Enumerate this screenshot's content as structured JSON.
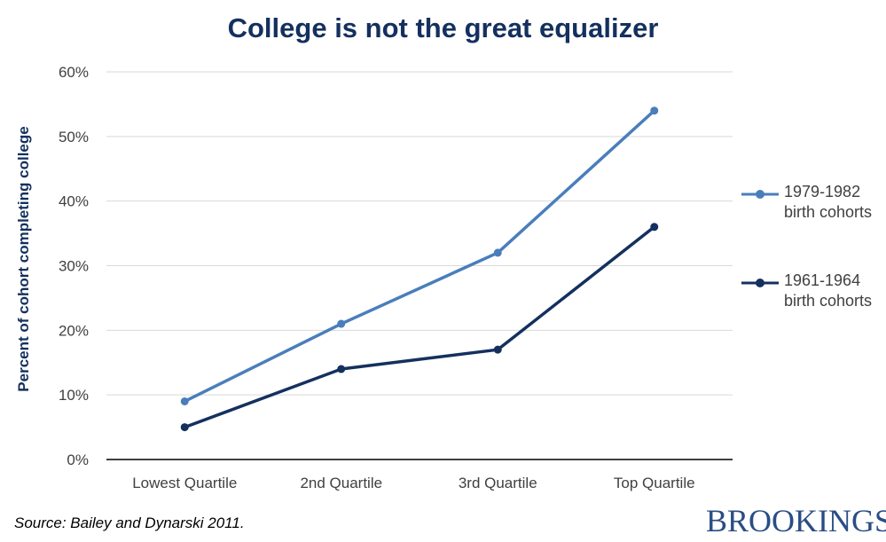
{
  "title": "College is not the great equalizer",
  "source": "Source: Bailey and Dynarski 2011.",
  "logo_text": "BROOKINGS",
  "colors": {
    "title": "#14305e",
    "series_light": "#4a7ebb",
    "series_dark": "#14305e",
    "grid": "#d9d9d9",
    "axis_text": "#404040"
  },
  "chart_data": {
    "type": "line",
    "title": "College is not the great equalizer",
    "xlabel": "",
    "ylabel": "Percent of cohort completing college",
    "categories": [
      "Lowest Quartile",
      "2nd Quartile",
      "3rd Quartile",
      "Top Quartile"
    ],
    "ylim": [
      0,
      60
    ],
    "yticks": [
      "0%",
      "10%",
      "20%",
      "30%",
      "40%",
      "50%",
      "60%"
    ],
    "grid": true,
    "legend_position": "right",
    "series": [
      {
        "name": "1979-1982 birth cohorts",
        "values": [
          9,
          21,
          32,
          54
        ],
        "color": "#4a7ebb"
      },
      {
        "name": "1961-1964 birth cohorts",
        "values": [
          5,
          14,
          17,
          36
        ],
        "color": "#14305e"
      }
    ]
  }
}
